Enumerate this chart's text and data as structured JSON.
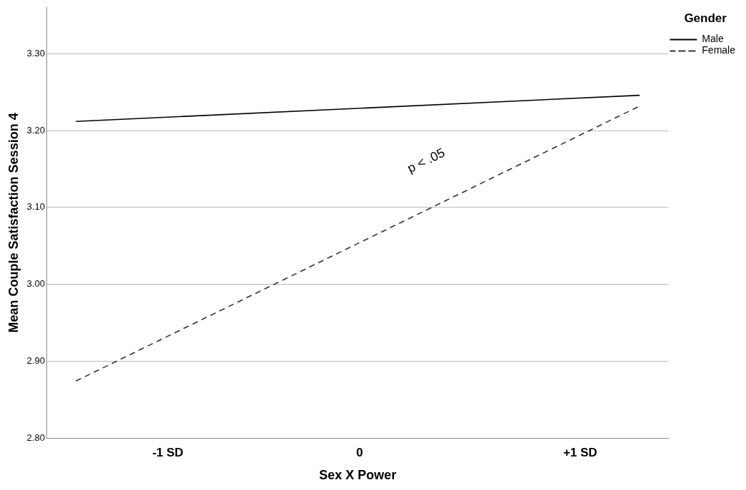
{
  "chart_data": {
    "type": "line",
    "xlabel": "Sex X Power",
    "ylabel": "Mean Couple Satisfaction Session 4",
    "legend_title": "Gender",
    "series": [
      {
        "name": "Male",
        "color": "#000000",
        "line_style": "solid",
        "values": [
          3.212,
          3.246
        ]
      },
      {
        "name": "Female",
        "color": "#333333",
        "line_style": "dashed",
        "values": [
          2.874,
          3.232
        ]
      }
    ],
    "x": [
      -1.48,
      1.46
    ],
    "xlim": [
      -1.63,
      1.61
    ],
    "xticks": [
      {
        "value": -1,
        "label": "-1 SD"
      },
      0,
      {
        "value": 1.15,
        "label": "+1 SD"
      }
    ],
    "ylim": [
      2.8,
      3.36
    ],
    "yticks": [
      {
        "value": 2.8,
        "label": "2.80"
      },
      {
        "value": 2.9,
        "label": "2.90"
      },
      {
        "value": 3.0,
        "label": "3.00"
      },
      {
        "value": 3.1,
        "label": "3.10"
      },
      {
        "value": 3.2,
        "label": "3.20"
      },
      {
        "value": 3.3,
        "label": "3.30"
      }
    ],
    "grid": "y",
    "legend": "top right",
    "marker": "none",
    "annotations": [
      "p < .05"
    ]
  }
}
